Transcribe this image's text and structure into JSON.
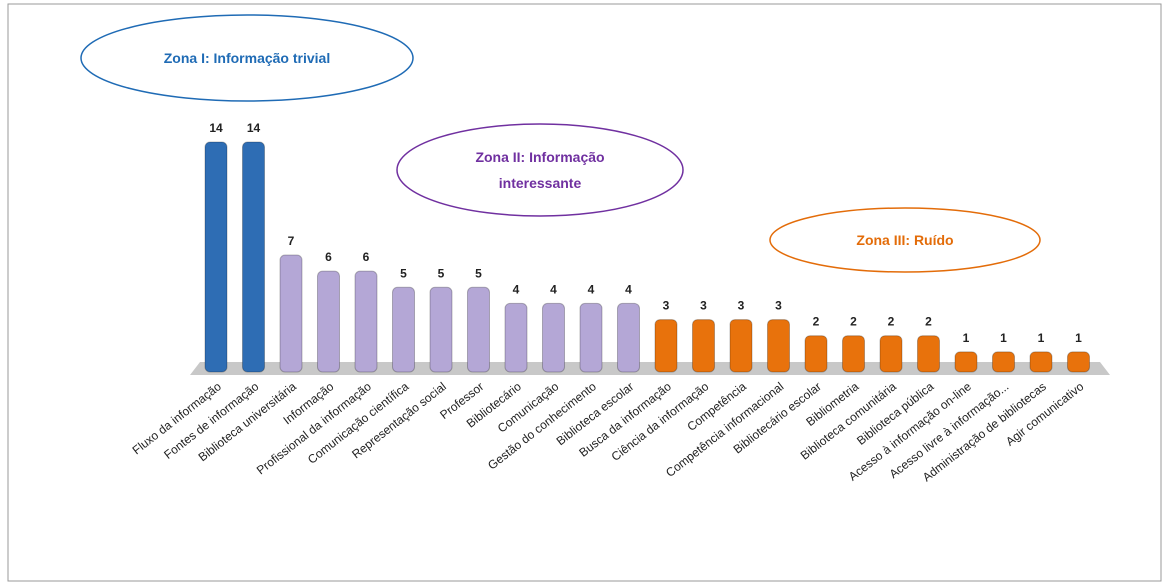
{
  "chart_data": {
    "type": "bar",
    "categories": [
      "Fluxo da informação",
      "Fontes de informação",
      "Biblioteca universitária",
      "Informação",
      "Profissional da informação",
      "Comunicação científica",
      "Representação social",
      "Professor",
      "Bibliotecário",
      "Comunicação",
      "Gestão do conhecimento",
      "Biblioteca escolar",
      "Busca da informação",
      "Ciência da informação",
      "Competência",
      "Competência informacional",
      "Bibliotecário escolar",
      "Bibliometria",
      "Biblioteca comunitária",
      "Biblioteca pública",
      "Acesso à informação on-line",
      "Acesso livre à informação...",
      "Administração de bibliotecas",
      "Agir comunicativo"
    ],
    "values": [
      14,
      14,
      7,
      6,
      6,
      5,
      5,
      5,
      4,
      4,
      4,
      4,
      3,
      3,
      3,
      3,
      2,
      2,
      2,
      2,
      1,
      1,
      1,
      1
    ],
    "colors": [
      "#2e6db4",
      "#2e6db4",
      "#b4a7d6",
      "#b4a7d6",
      "#b4a7d6",
      "#b4a7d6",
      "#b4a7d6",
      "#b4a7d6",
      "#b4a7d6",
      "#b4a7d6",
      "#b4a7d6",
      "#b4a7d6",
      "#e8720c",
      "#e8720c",
      "#e8720c",
      "#e8720c",
      "#e8720c",
      "#e8720c",
      "#e8720c",
      "#e8720c",
      "#e8720c",
      "#e8720c",
      "#e8720c",
      "#e8720c"
    ],
    "annotations": [
      {
        "text": "Zona I: Informação trivial",
        "color": "#1f6bb5"
      },
      {
        "text": "Zona II: Informação interessante",
        "color": "#7030a0"
      },
      {
        "text": "Zona III: Ruído",
        "color": "#e36c09"
      }
    ]
  }
}
